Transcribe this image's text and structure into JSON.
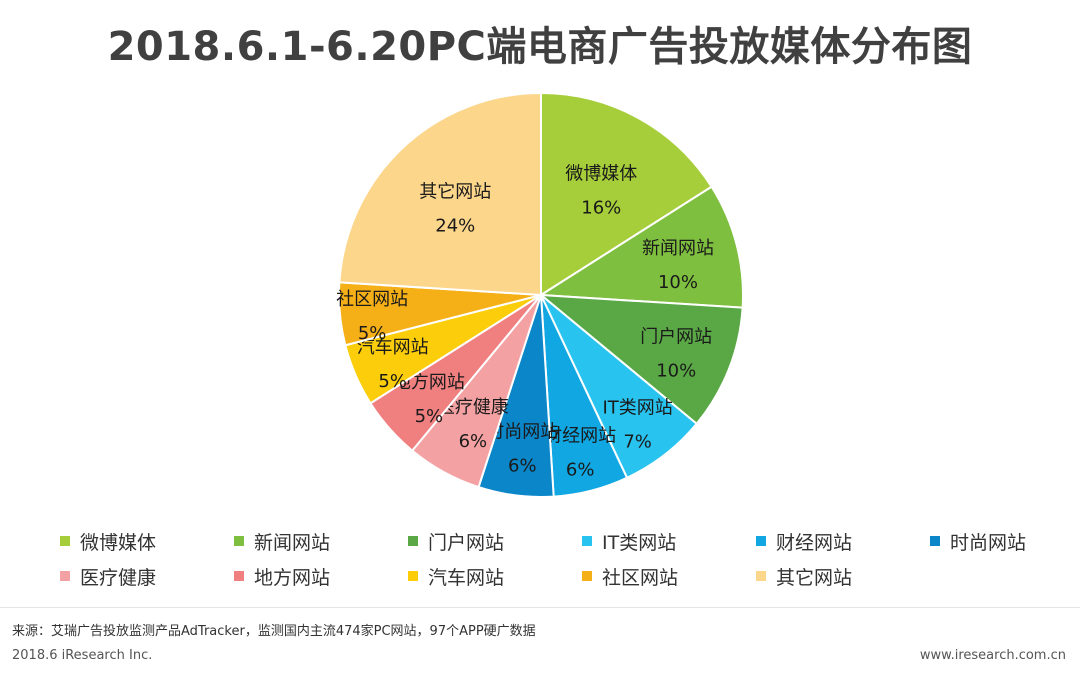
{
  "title": "2018.6.1-6.20PC端电商广告投放媒体分布图",
  "chart_data": {
    "type": "pie",
    "title": "2018.6.1-6.20PC端电商广告投放媒体分布图",
    "unit": "%",
    "slices": [
      {
        "name": "微博媒体",
        "value": 16,
        "label": "16%",
        "color": "#a6cd3a"
      },
      {
        "name": "新闻网站",
        "value": 10,
        "label": "10%",
        "color": "#7fbf3f"
      },
      {
        "name": "门户网站",
        "value": 10,
        "label": "10%",
        "color": "#5aa845"
      },
      {
        "name": "IT类网站",
        "value": 7,
        "label": "7%",
        "color": "#29c3f0"
      },
      {
        "name": "财经网站",
        "value": 6,
        "label": "6%",
        "color": "#10a7e3"
      },
      {
        "name": "时尚网站",
        "value": 6,
        "label": "6%",
        "color": "#0a86c9"
      },
      {
        "name": "医疗健康",
        "value": 6,
        "label": "6%",
        "color": "#f4a1a3"
      },
      {
        "name": "地方网站",
        "value": 5,
        "label": "5%",
        "color": "#f07f80"
      },
      {
        "name": "汽车网站",
        "value": 5,
        "label": "5%",
        "color": "#fccd0a"
      },
      {
        "name": "社区网站",
        "value": 5,
        "label": "5%",
        "color": "#f6b017"
      },
      {
        "name": "其它网站",
        "value": 24,
        "label": "24%",
        "color": "#fbd68b"
      }
    ],
    "legend_position": "bottom"
  },
  "footer": {
    "source": "来源：艾瑞广告投放监测产品AdTracker，监测国内主流474家PC网站，97个APP硬广数据",
    "copyright": "2018.6 iResearch Inc.",
    "website": "www.iresearch.com.cn"
  }
}
